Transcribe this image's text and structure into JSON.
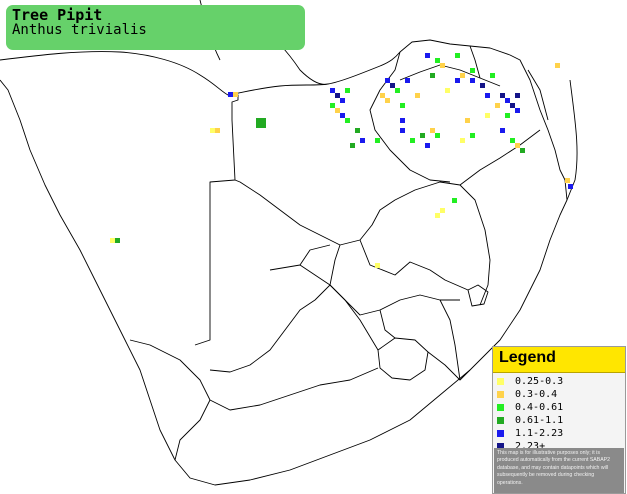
{
  "title": {
    "common_name": "Tree Pipit",
    "scientific_name": "Anthus trivialis"
  },
  "legend": {
    "title": "Legend",
    "items": [
      {
        "label": "0.25-0.3",
        "color": "#ffff66"
      },
      {
        "label": "0.3-0.4",
        "color": "#ffd24a"
      },
      {
        "label": "0.4-0.61",
        "color": "#22ee22"
      },
      {
        "label": "0.61-1.1",
        "color": "#22aa22"
      },
      {
        "label": "1.1-2.23",
        "color": "#1a1aee"
      },
      {
        "label": "2.23+",
        "color": "#141488"
      }
    ],
    "note": "This map is for illustrative purposes only; it is produced automatically from the current SABAP2 database, and may contain datapoints which will subsequently be removed during checking operations."
  },
  "colors": {
    "title_bg": "#66d16a",
    "legend_header": "#ffe600",
    "border_line": "#000000"
  }
}
